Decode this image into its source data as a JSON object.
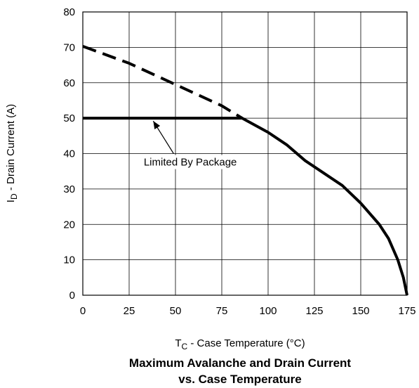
{
  "chart_data": {
    "type": "line",
    "title": [
      "Maximum Avalanche and Drain Current",
      "vs. Case Temperature"
    ],
    "xlabel": {
      "main": "T",
      "sub": "C",
      "rest": " - Case Temperature (°C)"
    },
    "ylabel": {
      "main": "I",
      "sub": "D",
      "rest": " - Drain Current (A)"
    },
    "xlim": [
      0,
      175
    ],
    "ylim": [
      0,
      80
    ],
    "x_ticks": [
      0,
      25,
      50,
      75,
      100,
      125,
      150,
      175
    ],
    "y_ticks": [
      0,
      10,
      20,
      30,
      40,
      50,
      60,
      70,
      80
    ],
    "grid": true,
    "series": [
      {
        "style": "solid",
        "x": [
          0,
          86,
          100,
          110,
          120,
          130,
          140,
          150,
          160,
          165,
          170,
          173,
          175
        ],
        "y": [
          50,
          50,
          46,
          42.5,
          38,
          34.5,
          31,
          26,
          20,
          16,
          10,
          5,
          0
        ]
      },
      {
        "style": "dashed",
        "x": [
          0,
          25,
          50,
          75,
          86
        ],
        "y": [
          70.3,
          65.5,
          59.5,
          53.5,
          50
        ]
      }
    ],
    "annotations": [
      {
        "text": "Limited By Package",
        "text_at": {
          "x": 58,
          "y": 36.6
        },
        "arrow_from": {
          "x": 49,
          "y": 40
        },
        "arrow_to": {
          "x": 38,
          "y": 49.2
        }
      }
    ],
    "colors": {
      "line": "#000000",
      "grid": "#000000",
      "background": "#ffffff"
    }
  }
}
